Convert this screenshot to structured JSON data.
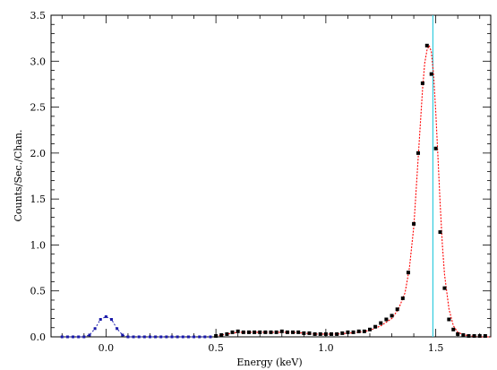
{
  "chart_data": {
    "type": "scatter",
    "title": "",
    "xlabel": "Energy (keV)",
    "ylabel": "Counts/Sec./Chan.",
    "xlim": [
      -0.25,
      1.75
    ],
    "ylim": [
      0,
      3.5
    ],
    "x_ticks": [
      0.0,
      0.5,
      1.0,
      1.5
    ],
    "x_tick_labels": [
      "0.0",
      "0.5",
      "1.0",
      "1.5"
    ],
    "y_ticks": [
      0.0,
      0.5,
      1.0,
      1.5,
      2.0,
      2.5,
      3.0,
      3.5
    ],
    "y_tick_labels": [
      "0.0",
      "0.5",
      "1.0",
      "1.5",
      "2.0",
      "2.5",
      "3.0",
      "3.5"
    ],
    "grid": false,
    "vline_x": 1.487,
    "colors": {
      "data_points": "#000000",
      "model_curve": "#ff0000",
      "zero_peak": "#1a1aaa",
      "vline": "#33ccdd",
      "axis": "#000000"
    },
    "series": [
      {
        "style": "dots",
        "x": [
          0.5,
          0.525,
          0.55,
          0.575,
          0.6,
          0.625,
          0.65,
          0.675,
          0.7,
          0.725,
          0.75,
          0.775,
          0.8,
          0.825,
          0.85,
          0.875,
          0.9,
          0.925,
          0.95,
          0.975,
          1.0,
          1.025,
          1.05,
          1.075,
          1.1,
          1.125,
          1.15,
          1.175,
          1.2,
          1.225,
          1.25,
          1.275,
          1.3,
          1.325,
          1.35,
          1.375,
          1.4,
          1.42,
          1.44,
          1.46,
          1.48,
          1.5,
          1.52,
          1.54,
          1.56,
          1.58,
          1.6,
          1.625,
          1.65,
          1.675,
          1.7,
          1.725
        ],
        "y": [
          0.01,
          0.02,
          0.03,
          0.05,
          0.06,
          0.05,
          0.05,
          0.05,
          0.05,
          0.05,
          0.05,
          0.05,
          0.06,
          0.05,
          0.05,
          0.05,
          0.04,
          0.04,
          0.03,
          0.03,
          0.03,
          0.03,
          0.03,
          0.04,
          0.05,
          0.05,
          0.06,
          0.06,
          0.08,
          0.11,
          0.15,
          0.19,
          0.23,
          0.3,
          0.42,
          0.7,
          1.23,
          2.0,
          2.76,
          3.17,
          2.86,
          2.05,
          1.14,
          0.53,
          0.19,
          0.08,
          0.03,
          0.02,
          0.01,
          0.01,
          0.01,
          0.01
        ]
      },
      {
        "style": "dotted-line",
        "x": [
          -0.2,
          -0.175,
          -0.15,
          -0.125,
          -0.1,
          -0.075,
          -0.05,
          -0.025,
          0.0,
          0.025,
          0.05,
          0.075,
          0.1,
          0.125,
          0.15,
          0.175,
          0.2,
          0.225,
          0.25,
          0.275,
          0.3,
          0.325,
          0.35,
          0.375,
          0.4,
          0.425,
          0.45,
          0.475
        ],
        "y": [
          0.0,
          0.0,
          0.0,
          0.0,
          0.0,
          0.02,
          0.09,
          0.19,
          0.22,
          0.19,
          0.09,
          0.02,
          0.0,
          0.0,
          0.0,
          0.0,
          0.0,
          0.0,
          0.0,
          0.0,
          0.0,
          0.0,
          0.0,
          0.0,
          0.0,
          0.0,
          0.0,
          0.0
        ]
      },
      {
        "style": "dotted-line",
        "x": [
          0.5,
          0.55,
          0.6,
          0.65,
          0.7,
          0.75,
          0.8,
          0.85,
          0.9,
          0.95,
          1.0,
          1.05,
          1.1,
          1.15,
          1.2,
          1.25,
          1.3,
          1.33,
          1.36,
          1.38,
          1.4,
          1.42,
          1.44,
          1.45,
          1.46,
          1.47,
          1.48,
          1.49,
          1.5,
          1.51,
          1.52,
          1.53,
          1.54,
          1.56,
          1.58,
          1.6,
          1.63,
          1.66,
          1.7,
          1.75
        ],
        "y": [
          0.01,
          0.03,
          0.05,
          0.05,
          0.05,
          0.05,
          0.05,
          0.05,
          0.04,
          0.03,
          0.03,
          0.03,
          0.04,
          0.05,
          0.07,
          0.12,
          0.2,
          0.3,
          0.48,
          0.75,
          1.2,
          1.95,
          2.7,
          2.98,
          3.12,
          3.17,
          3.1,
          2.85,
          2.45,
          1.95,
          1.45,
          1.0,
          0.68,
          0.3,
          0.12,
          0.05,
          0.02,
          0.01,
          0.0,
          0.0
        ]
      }
    ]
  }
}
